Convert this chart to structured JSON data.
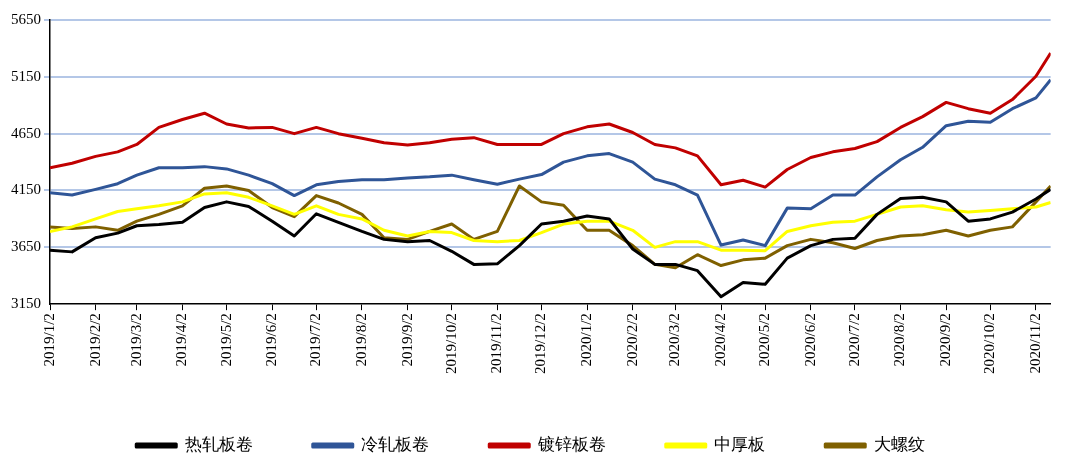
{
  "chart_data": {
    "type": "line",
    "x": [
      "2019-01-02",
      "2019-01-17",
      "2019-02-02",
      "2019-02-17",
      "2019-03-02",
      "2019-03-17",
      "2019-04-02",
      "2019-04-17",
      "2019-05-02",
      "2019-05-17",
      "2019-06-02",
      "2019-06-17",
      "2019-07-02",
      "2019-07-17",
      "2019-08-02",
      "2019-08-17",
      "2019-09-02",
      "2019-09-17",
      "2019-10-02",
      "2019-10-17",
      "2019-11-02",
      "2019-11-17",
      "2019-12-02",
      "2019-12-17",
      "2020-01-02",
      "2020-01-17",
      "2020-02-02",
      "2020-02-17",
      "2020-03-02",
      "2020-03-17",
      "2020-04-02",
      "2020-04-17",
      "2020-05-02",
      "2020-05-17",
      "2020-06-02",
      "2020-06-17",
      "2020-07-02",
      "2020-07-17",
      "2020-08-02",
      "2020-08-17",
      "2020-09-02",
      "2020-09-17",
      "2020-10-02",
      "2020-10-17",
      "2020-11-02",
      "2020-11-12"
    ],
    "series": [
      {
        "name": "热轧板卷",
        "color": "#000000",
        "values": [
          3625,
          3610,
          3735,
          3775,
          3840,
          3850,
          3870,
          4000,
          4050,
          4010,
          3880,
          3750,
          3945,
          3870,
          3790,
          3720,
          3700,
          3710,
          3615,
          3500,
          3505,
          3665,
          3855,
          3880,
          3925,
          3900,
          3635,
          3500,
          3500,
          3445,
          3215,
          3340,
          3325,
          3555,
          3665,
          3720,
          3730,
          3940,
          4080,
          4090,
          4050,
          3880,
          3900,
          3960,
          4075,
          4160
        ]
      },
      {
        "name": "冷轧板卷",
        "color": "#2f5597",
        "values": [
          4130,
          4110,
          4160,
          4210,
          4285,
          4350,
          4350,
          4360,
          4340,
          4285,
          4210,
          4105,
          4200,
          4230,
          4245,
          4245,
          4260,
          4270,
          4285,
          4245,
          4205,
          4250,
          4290,
          4400,
          4455,
          4475,
          4400,
          4250,
          4200,
          4110,
          3670,
          3715,
          3665,
          3995,
          3990,
          4110,
          4110,
          4270,
          4420,
          4530,
          4720,
          4760,
          4750,
          4870,
          4965,
          5125
        ]
      },
      {
        "name": "镀锌板卷",
        "color": "#c00000",
        "values": [
          4350,
          4390,
          4450,
          4490,
          4555,
          4705,
          4775,
          4830,
          4735,
          4700,
          4705,
          4650,
          4705,
          4650,
          4610,
          4570,
          4550,
          4570,
          4600,
          4615,
          4555,
          4555,
          4555,
          4650,
          4710,
          4735,
          4660,
          4555,
          4525,
          4455,
          4200,
          4240,
          4180,
          4335,
          4440,
          4490,
          4520,
          4580,
          4705,
          4800,
          4925,
          4870,
          4830,
          4950,
          5155,
          5360
        ]
      },
      {
        "name": "中厚板",
        "color": "#ffff00",
        "values": [
          3790,
          3830,
          3900,
          3965,
          3990,
          4015,
          4050,
          4120,
          4130,
          4090,
          4015,
          3940,
          4015,
          3940,
          3900,
          3800,
          3750,
          3790,
          3780,
          3710,
          3700,
          3710,
          3780,
          3855,
          3880,
          3880,
          3800,
          3650,
          3700,
          3700,
          3625,
          3625,
          3620,
          3790,
          3840,
          3870,
          3880,
          3940,
          4005,
          4015,
          3980,
          3960,
          3975,
          3990,
          4005,
          4045
        ]
      },
      {
        "name": "大螺纹",
        "color": "#7f6000",
        "values": [
          3830,
          3815,
          3830,
          3800,
          3880,
          3940,
          4015,
          4170,
          4190,
          4150,
          4000,
          3920,
          4105,
          4040,
          3940,
          3735,
          3720,
          3790,
          3855,
          3720,
          3790,
          4190,
          4050,
          4020,
          3800,
          3800,
          3665,
          3500,
          3470,
          3585,
          3490,
          3540,
          3555,
          3665,
          3720,
          3690,
          3640,
          3710,
          3750,
          3760,
          3800,
          3750,
          3800,
          3830,
          4050,
          4190
        ]
      }
    ],
    "xlim": [
      "2019-01-02",
      "2020-11-12"
    ],
    "xticks": [
      {
        "value": "2019-01-02",
        "label": "2019/1/2"
      },
      {
        "value": "2019-02-02",
        "label": "2019/2/2"
      },
      {
        "value": "2019-03-02",
        "label": "2019/3/2"
      },
      {
        "value": "2019-04-02",
        "label": "2019/4/2"
      },
      {
        "value": "2019-05-02",
        "label": "2019/5/2"
      },
      {
        "value": "2019-06-02",
        "label": "2019/6/2"
      },
      {
        "value": "2019-07-02",
        "label": "2019/7/2"
      },
      {
        "value": "2019-08-02",
        "label": "2019/8/2"
      },
      {
        "value": "2019-09-02",
        "label": "2019/9/2"
      },
      {
        "value": "2019-10-02",
        "label": "2019/10/2"
      },
      {
        "value": "2019-11-02",
        "label": "2019/11/2"
      },
      {
        "value": "2019-12-02",
        "label": "2019/12/2"
      },
      {
        "value": "2020-01-02",
        "label": "2020/1/2"
      },
      {
        "value": "2020-02-02",
        "label": "2020/2/2"
      },
      {
        "value": "2020-03-02",
        "label": "2020/3/2"
      },
      {
        "value": "2020-04-02",
        "label": "2020/4/2"
      },
      {
        "value": "2020-05-02",
        "label": "2020/5/2"
      },
      {
        "value": "2020-06-02",
        "label": "2020/6/2"
      },
      {
        "value": "2020-07-02",
        "label": "2020/7/2"
      },
      {
        "value": "2020-08-02",
        "label": "2020/8/2"
      },
      {
        "value": "2020-09-02",
        "label": "2020/9/2"
      },
      {
        "value": "2020-10-02",
        "label": "2020/10/2"
      },
      {
        "value": "2020-11-02",
        "label": "2020/11/2"
      }
    ],
    "ylim": [
      3150,
      5650
    ],
    "yticks": [
      3150,
      3650,
      4150,
      4650,
      5150,
      5650
    ],
    "grid": "y",
    "legend": "bottom",
    "marker": "none",
    "line_style": "solid"
  }
}
